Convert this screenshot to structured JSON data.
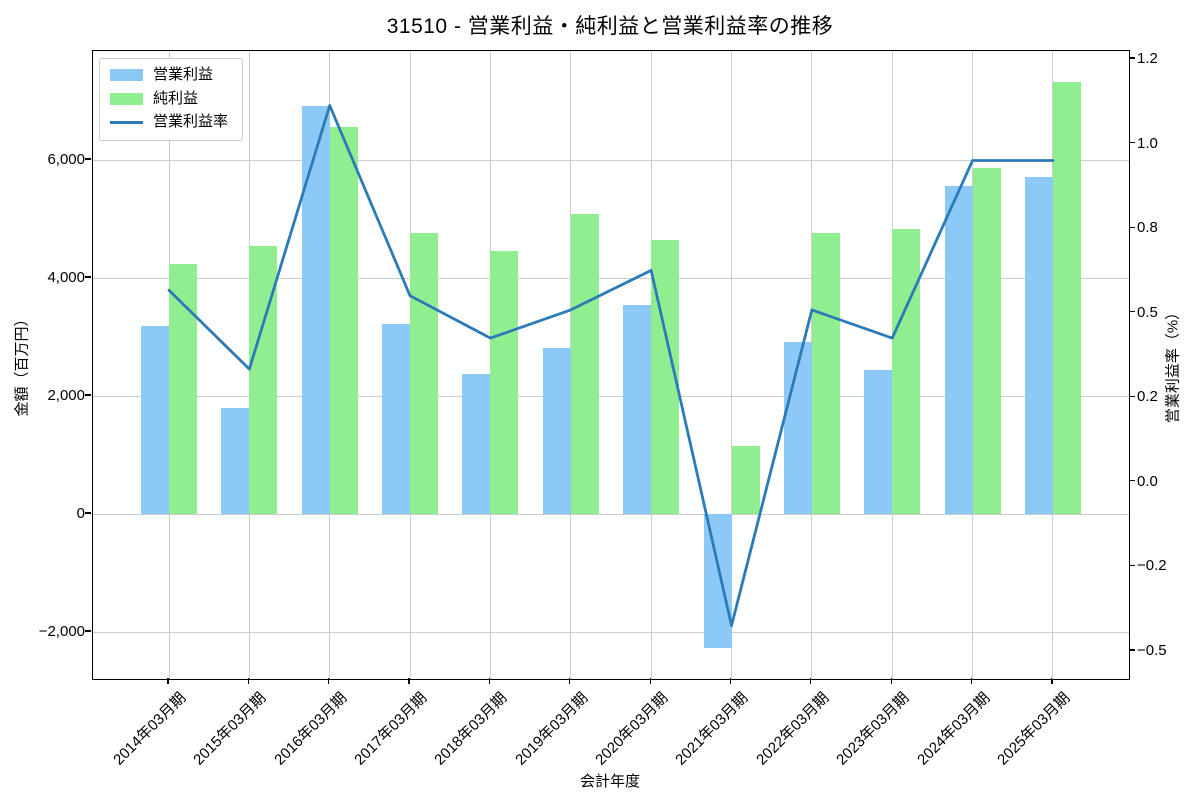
{
  "title": "31510 - 営業利益・純利益と営業利益率の推移",
  "chart_data": {
    "type": "bar",
    "categories": [
      "2014年03月期",
      "2015年03月期",
      "2016年03月期",
      "2017年03月期",
      "2018年03月期",
      "2019年03月期",
      "2020年03月期",
      "2021年03月期",
      "2022年03月期",
      "2023年03月期",
      "2024年03月期",
      "2025年03月期"
    ],
    "series": [
      {
        "name": "営業利益",
        "type": "bar",
        "axis": "left",
        "color": "#8dc9f7",
        "values": [
          3190,
          1800,
          6920,
          3220,
          2370,
          2810,
          3540,
          -2270,
          2920,
          2440,
          5560,
          5710
        ]
      },
      {
        "name": "純利益",
        "type": "bar",
        "axis": "left",
        "color": "#90ee90",
        "values": [
          4240,
          4540,
          6560,
          4760,
          4460,
          5080,
          4640,
          1150,
          4760,
          4830,
          5860,
          7320
        ]
      },
      {
        "name": "営業利益率",
        "type": "line",
        "axis": "right",
        "color": "#2b7bb8",
        "values": [
          0.58,
          0.3,
          1.09,
          0.56,
          0.41,
          0.51,
          0.65,
          -0.41,
          0.51,
          0.41,
          0.96,
          0.96
        ]
      }
    ],
    "xlabel": "会計年度",
    "ylabel_left": "金額（百万円）",
    "ylabel_right": "営業利益率（%）",
    "y_left_ticks": [
      {
        "value": 6000,
        "label": "6,000"
      },
      {
        "value": 4000,
        "label": "4,000"
      },
      {
        "value": 2000,
        "label": "2,000"
      },
      {
        "value": 0,
        "label": "0"
      },
      {
        "value": -2000,
        "label": "−2,000"
      }
    ],
    "y_right_tick_labels": [
      "1.2",
      "1.0",
      "0.8",
      "0.5",
      "0.2",
      "0.0",
      "−0.2",
      "−0.5"
    ],
    "ylim_left": [
      -2800,
      7850
    ],
    "grid": true,
    "legend_position": "upper-left",
    "gridline_color": "#cccccc"
  }
}
